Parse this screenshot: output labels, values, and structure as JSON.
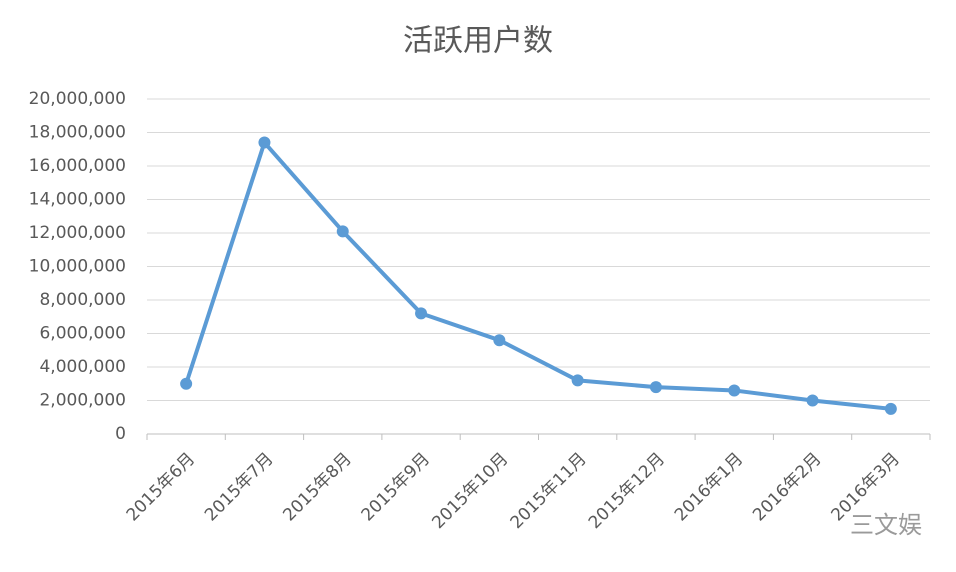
{
  "chart_data": {
    "type": "line",
    "title": "活跃用户数",
    "categories": [
      "2015年6月",
      "2015年7月",
      "2015年8月",
      "2015年9月",
      "2015年10月",
      "2015年11月",
      "2015年12月",
      "2016年1月",
      "2016年2月",
      "2016年3月"
    ],
    "series": [
      {
        "name": "活跃用户数",
        "color": "#5b9bd5",
        "values": [
          3000000,
          17400000,
          12100000,
          7200000,
          5600000,
          3200000,
          2800000,
          2600000,
          2000000,
          1500000
        ]
      }
    ],
    "ylim": [
      0,
      20000000
    ],
    "yticks": [
      0,
      {
        "value": 2000000,
        "label": "2,000,000"
      },
      {
        "value": 4000000,
        "label": "4,000,000"
      },
      {
        "value": 6000000,
        "label": "6,000,000"
      },
      {
        "value": 8000000,
        "label": "8,000,000"
      },
      {
        "value": 10000000,
        "label": "10,000,000"
      },
      {
        "value": 12000000,
        "label": "12,000,000"
      },
      {
        "value": 14000000,
        "label": "14,000,000"
      },
      {
        "value": 16000000,
        "label": "16,000,000"
      },
      {
        "value": 18000000,
        "label": "18,000,000"
      },
      {
        "value": 20000000,
        "label": "20,000,000"
      }
    ],
    "grid": true,
    "watermark": "三文娱"
  }
}
